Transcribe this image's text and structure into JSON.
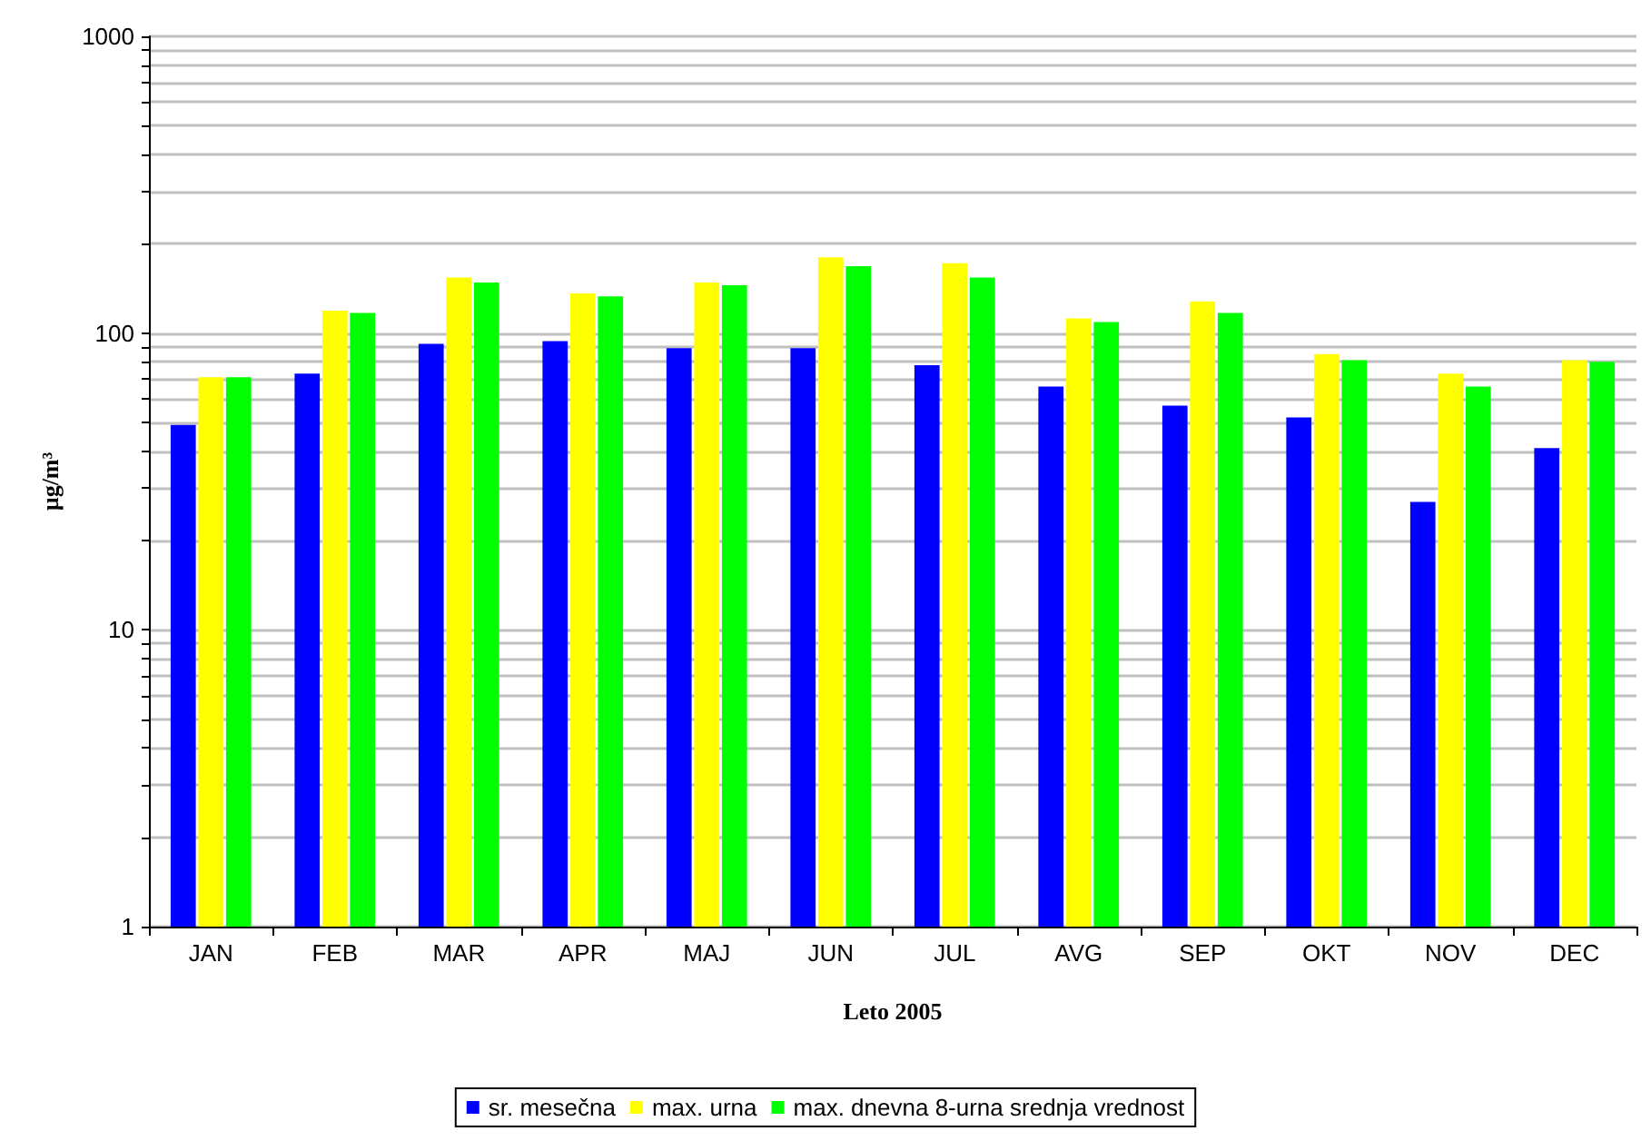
{
  "chart_data": {
    "type": "bar",
    "xlabel": "Leto 2005",
    "ylabel": "µg/m³",
    "categories": [
      "JAN",
      "FEB",
      "MAR",
      "APR",
      "MAJ",
      "JUN",
      "JUL",
      "AVG",
      "SEP",
      "OKT",
      "NOV",
      "DEC"
    ],
    "series": [
      {
        "name": "sr. mesečna",
        "color": "#0000ff",
        "values": [
          49,
          73,
          92,
          94,
          89,
          89,
          78,
          66,
          57,
          52,
          27,
          41
        ]
      },
      {
        "name": "max. urna",
        "color": "#ffff00",
        "values": [
          71,
          119,
          154,
          136,
          148,
          180,
          172,
          112,
          128,
          85,
          73,
          81
        ]
      },
      {
        "name": "max. dnevna 8-urna srednja vrednost",
        "color": "#00ff00",
        "values": [
          71,
          117,
          148,
          133,
          145,
          168,
          154,
          109,
          117,
          81,
          66,
          80
        ]
      }
    ],
    "log": true,
    "ylim": [
      1,
      1000
    ],
    "yticks": [
      1,
      {
        "value": 2,
        "label": null
      },
      {
        "value": 3,
        "label": null
      },
      {
        "value": 4,
        "label": null
      },
      {
        "value": 5,
        "label": null
      },
      {
        "value": 6,
        "label": null
      },
      {
        "value": 7,
        "label": null
      },
      {
        "value": 8,
        "label": null
      },
      {
        "value": 9,
        "label": null
      },
      10,
      {
        "value": 20,
        "label": null
      },
      {
        "value": 30,
        "label": null
      },
      {
        "value": 40,
        "label": null
      },
      {
        "value": 50,
        "label": null
      },
      {
        "value": 60,
        "label": null
      },
      {
        "value": 70,
        "label": null
      },
      {
        "value": 80,
        "label": null
      },
      {
        "value": 90,
        "label": null
      },
      100,
      {
        "value": 200,
        "label": null
      },
      {
        "value": 300,
        "label": null
      },
      {
        "value": 400,
        "label": null
      },
      {
        "value": 500,
        "label": null
      },
      {
        "value": 600,
        "label": null
      },
      {
        "value": 700,
        "label": null
      },
      {
        "value": 800,
        "label": null
      },
      {
        "value": 900,
        "label": null
      },
      1000
    ],
    "grid": "y",
    "legend": "bottom"
  }
}
